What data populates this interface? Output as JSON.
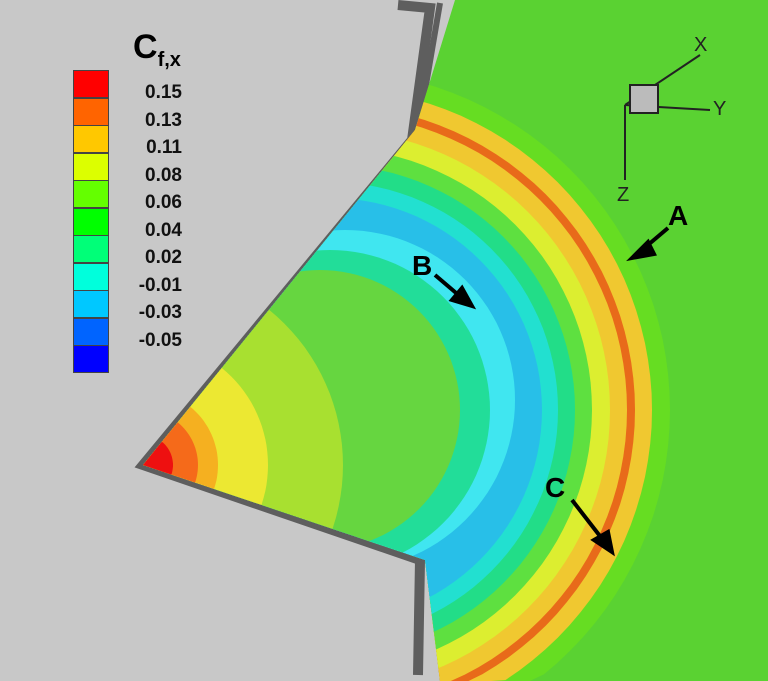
{
  "legend": {
    "title_main": "C",
    "title_sub": "f,x",
    "colors": [
      "#ff0000",
      "#ff6400",
      "#ffc800",
      "#dcff00",
      "#64ff00",
      "#00ff00",
      "#00ff78",
      "#00ffdc",
      "#00c8ff",
      "#0064ff",
      "#0000ff"
    ],
    "ticks": [
      "0.15",
      "0.13",
      "0.11",
      "0.08",
      "0.06",
      "0.04",
      "0.02",
      "-0.01",
      "-0.03",
      "-0.05"
    ]
  },
  "annotations": {
    "a": "A",
    "b": "B",
    "c": "C"
  },
  "axes": {
    "x": "X",
    "y": "Y",
    "z": "Z"
  }
}
